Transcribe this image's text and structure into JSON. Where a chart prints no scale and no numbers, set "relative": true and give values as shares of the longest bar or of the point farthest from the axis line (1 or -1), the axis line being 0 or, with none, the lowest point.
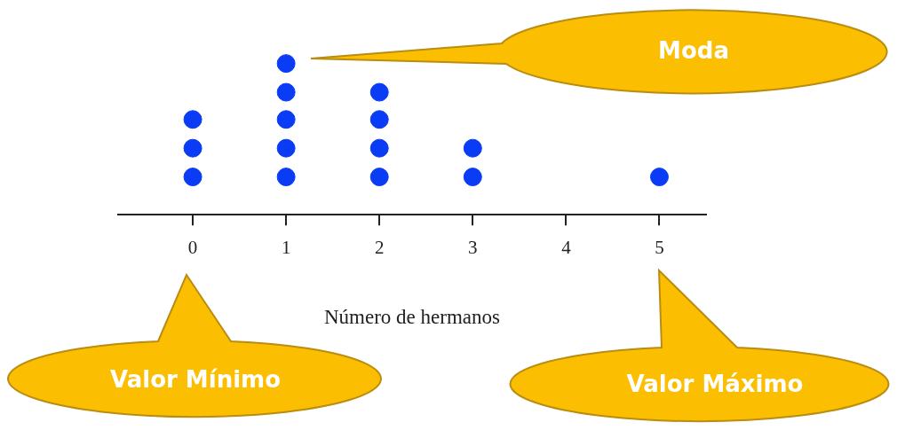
{
  "chart_data": {
    "type": "scatter",
    "relative": true,
    "xlabel": "Número de hermanos",
    "xlim": [
      -0.8,
      5.5
    ],
    "xticks": [
      0,
      1,
      2,
      3,
      4,
      5
    ],
    "grid": false,
    "legend": false,
    "marker": "circle",
    "tick_labels": "x",
    "x": [
      0,
      0,
      0,
      1,
      1,
      1,
      1,
      1,
      2,
      2,
      2,
      2,
      3,
      3,
      5
    ],
    "series": [
      {
        "color": "#0b3cf5",
        "values": [
          0.25,
          0.44,
          0.63,
          0.25,
          0.44,
          0.63,
          0.81,
          1,
          0.25,
          0.44,
          0.63,
          0.81,
          0.25,
          0.44,
          0.25
        ]
      }
    ],
    "annotations": [
      "Moda",
      "Valor Mínimo",
      "Valor Máximo"
    ]
  }
}
